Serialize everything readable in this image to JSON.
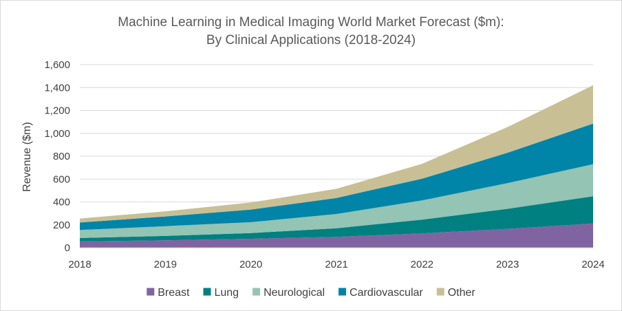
{
  "chart_data": {
    "type": "area",
    "stacked": true,
    "title_lines": [
      "Machine Learning in Medical Imaging World Market Forecast ($m):",
      "By Clinical Applications (2018-2024)"
    ],
    "xlabel": "",
    "ylabel": "Revenue ($m)",
    "x": [
      "2018",
      "2019",
      "2020",
      "2021",
      "2022",
      "2023",
      "2024"
    ],
    "ylim": [
      0,
      1600
    ],
    "yticks": [
      0,
      200,
      400,
      600,
      800,
      1000,
      1200,
      1400,
      1600
    ],
    "ytick_labels": [
      "0",
      "200",
      "400",
      "600",
      "800",
      "1,000",
      "1,200",
      "1,400",
      "1,600"
    ],
    "grid": true,
    "legend_position": "bottom",
    "series": [
      {
        "name": "Breast",
        "color": "#8064a2",
        "values": [
          55,
          65,
          78,
          95,
          125,
          165,
          212
        ]
      },
      {
        "name": "Lung",
        "color": "#008080",
        "values": [
          30,
          38,
          50,
          75,
          120,
          175,
          238
        ]
      },
      {
        "name": "Neurological",
        "color": "#93c4b4",
        "values": [
          70,
          85,
          95,
          125,
          168,
          225,
          280
        ]
      },
      {
        "name": "Cardiovascular",
        "color": "#0084a8",
        "values": [
          65,
          85,
          110,
          140,
          190,
          265,
          355
        ]
      },
      {
        "name": "Other",
        "color": "#c8bf95",
        "values": [
          35,
          45,
          62,
          80,
          130,
          225,
          335
        ]
      }
    ]
  }
}
